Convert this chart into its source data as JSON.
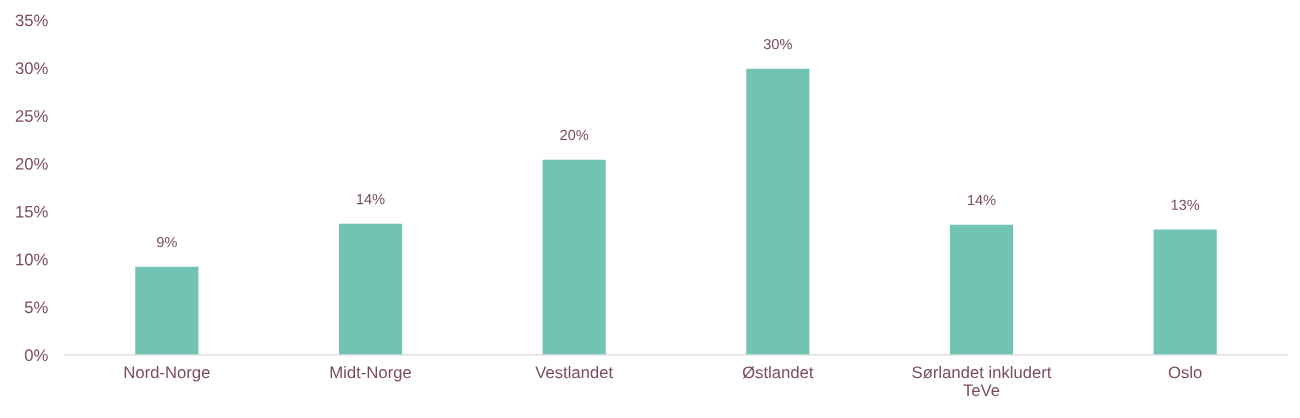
{
  "chart_data": {
    "type": "bar",
    "categories": [
      "Nord-Norge",
      "Midt-Norge",
      "Vestlandet",
      "Østlandet",
      "Sørlandet inkludert\nTeVe",
      "Oslo"
    ],
    "values": [
      9.2,
      13.7,
      20.4,
      29.9,
      13.6,
      13.1
    ],
    "value_labels": [
      "9%",
      "14%",
      "20%",
      "30%",
      "14%",
      "13%"
    ],
    "color": "#71c4b4",
    "ylim": [
      0,
      35
    ],
    "yticks": [
      {
        "value": 0,
        "label": "0%"
      },
      {
        "value": 5,
        "label": "5%"
      },
      {
        "value": 10,
        "label": "10%"
      },
      {
        "value": 15,
        "label": "15%"
      },
      {
        "value": 20,
        "label": "20%"
      },
      {
        "value": 25,
        "label": "25%"
      },
      {
        "value": 30,
        "label": "30%"
      },
      {
        "value": 35,
        "label": "35%"
      }
    ],
    "grid": false,
    "legend": false
  }
}
